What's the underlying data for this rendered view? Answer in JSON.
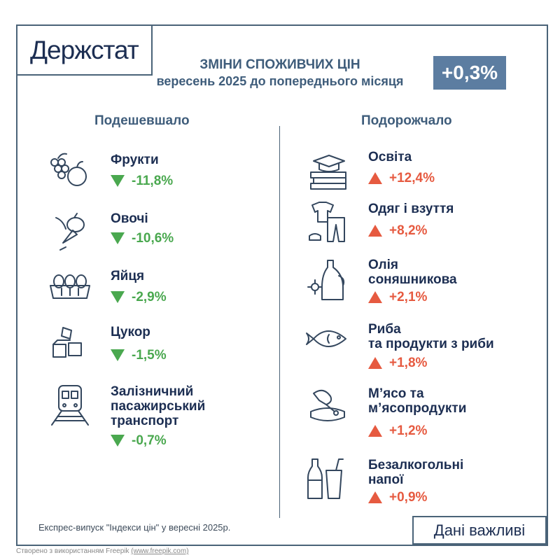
{
  "logo": "Держстат",
  "header": {
    "title": "ЗМІНИ СПОЖИВЧИХ ЦІН",
    "subtitle": "вересень 2025 до попереднього місяця",
    "total": "+0,3%"
  },
  "left": {
    "heading": "Подешевшало",
    "items": [
      {
        "name": "Фрукти",
        "change": "-11,8%",
        "icon": "fruit-icon"
      },
      {
        "name": "Овочі",
        "change": "-10,6%",
        "icon": "vegetables-icon"
      },
      {
        "name": "Яйця",
        "change": "-2,9%",
        "icon": "eggs-icon"
      },
      {
        "name": "Цукор",
        "change": "-1,5%",
        "icon": "sugar-cubes-icon"
      },
      {
        "name": "Залізничний\nпасажирський\nтранспорт",
        "change": "-0,7%",
        "icon": "train-icon"
      }
    ]
  },
  "right": {
    "heading": "Подорожчало",
    "items": [
      {
        "name": "Освіта",
        "change": "+12,4%",
        "icon": "books-graduation-cap-icon"
      },
      {
        "name": "Одяг і взуття",
        "change": "+8,2%",
        "icon": "clothes-icon"
      },
      {
        "name": "Олія\nсоняшникова",
        "change": "+2,1%",
        "icon": "oil-bottle-icon"
      },
      {
        "name": "Риба\nта продукти з риби",
        "change": "+1,8%",
        "icon": "fish-icon"
      },
      {
        "name": "М’ясо та\nм’ясопродукти",
        "change": "+1,2%",
        "icon": "meat-icon"
      },
      {
        "name": "Безалкогольні\nнапої",
        "change": "+0,9%",
        "icon": "soft-drinks-icon"
      }
    ]
  },
  "footer": {
    "source": "Експрес-випуск \"Індекси цін\" у вересні 2025р.",
    "tagline": "Дані важливі",
    "credit": "Створено з використанням Freepik",
    "credit_link": "(www.freepik.com)"
  },
  "colors": {
    "navy": "#1c2e52",
    "badge": "#5c7da1",
    "down": "#4aa84f",
    "up": "#e65a40"
  }
}
